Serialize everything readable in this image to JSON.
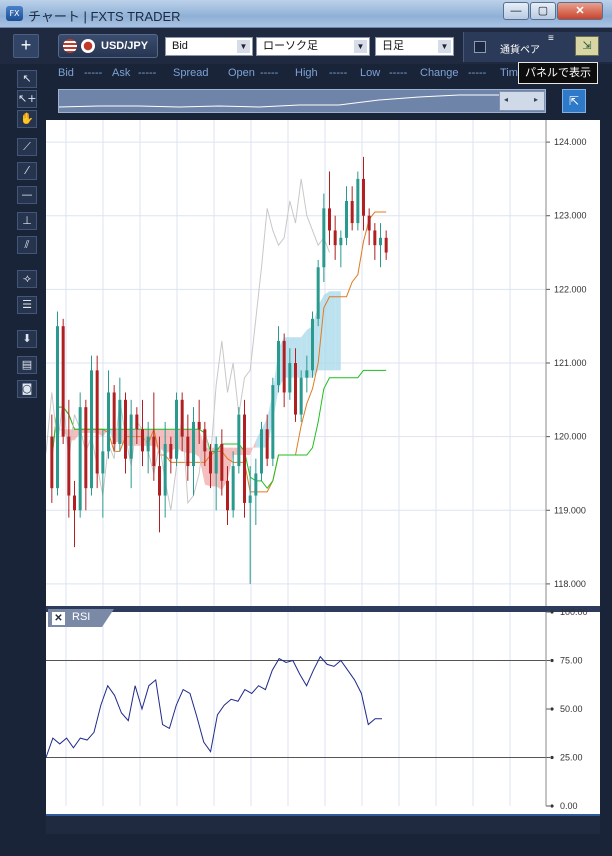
{
  "window": {
    "title": "チャート | FXTS TRADER",
    "icon": "FX",
    "min": "—",
    "max": "▢",
    "close": "✕"
  },
  "toolbar": {
    "add": "+",
    "pair": "USD/JPY",
    "price_type": "Bid",
    "chart_type": "ローソク足",
    "period": "日足",
    "currency_pair_label": "通貨ペア",
    "menu_icon": "≡",
    "restore": "⇲"
  },
  "quote": {
    "bid_label": "Bid",
    "bid": "-----",
    "ask_label": "Ask",
    "ask": "-----",
    "spread_label": "Spread",
    "open_label": "Open",
    "open": "-----",
    "high_label": "High",
    "high": "-----",
    "low_label": "Low",
    "low": "-----",
    "change_label": "Change",
    "change": "-----",
    "time_label": "Tim"
  },
  "tooltip": "パネルで表示",
  "navigator": {
    "left": "◂",
    "right": "▸"
  },
  "tools": [
    "↖",
    "↖+",
    "✋",
    "⟋",
    "⁄",
    "—",
    "⊥",
    "⫽",
    "⟢",
    "☰",
    "⬇",
    "▤",
    "◙"
  ],
  "indicator": {
    "close": "✕",
    "name": "RSI"
  },
  "colors": {
    "bull": "#2a9a8e",
    "bear": "#b02020",
    "kumo_bull": "#a7d8ea",
    "kumo_bear": "#f0a8a8",
    "tenkan": "#e07a20",
    "kijun": "#1fbf1f",
    "chikou": "#c8c8c8",
    "rsi": "#1f2a8a"
  },
  "chart_data": [
    {
      "type": "candlestick",
      "ylim": [
        117.7,
        124.3
      ],
      "yticks": [
        "118.000",
        "119.000",
        "120.000",
        "121.000",
        "122.000",
        "123.000",
        "124.000"
      ],
      "ytick_values": [
        118,
        119,
        120,
        121,
        122,
        123,
        124
      ],
      "candles": [
        [
          120.0,
          120.3,
          119.1,
          119.3
        ],
        [
          119.3,
          121.7,
          119.2,
          121.5
        ],
        [
          121.5,
          121.6,
          119.9,
          120.0
        ],
        [
          120.0,
          120.5,
          118.9,
          119.2
        ],
        [
          119.2,
          119.4,
          118.5,
          119.0
        ],
        [
          119.0,
          120.6,
          118.9,
          120.4
        ],
        [
          120.4,
          120.5,
          119.0,
          119.3
        ],
        [
          119.3,
          121.1,
          119.2,
          120.9
        ],
        [
          120.9,
          121.1,
          119.3,
          119.5
        ],
        [
          119.5,
          120.1,
          118.9,
          119.8
        ],
        [
          119.8,
          120.9,
          119.7,
          120.6
        ],
        [
          120.6,
          120.7,
          119.8,
          119.9
        ],
        [
          119.9,
          120.8,
          119.8,
          120.5
        ],
        [
          120.5,
          120.6,
          119.5,
          119.7
        ],
        [
          119.7,
          120.5,
          119.3,
          120.3
        ],
        [
          120.3,
          120.4,
          119.9,
          120.1
        ],
        [
          120.1,
          120.5,
          119.6,
          119.8
        ],
        [
          119.8,
          120.2,
          119.5,
          120.0
        ],
        [
          120.0,
          120.6,
          119.4,
          119.6
        ],
        [
          119.6,
          120.0,
          118.7,
          119.2
        ],
        [
          119.2,
          120.2,
          118.9,
          119.9
        ],
        [
          119.9,
          120.0,
          119.5,
          119.7
        ],
        [
          119.7,
          120.6,
          119.6,
          120.5
        ],
        [
          120.5,
          120.6,
          119.8,
          120.0
        ],
        [
          120.0,
          120.3,
          119.4,
          119.6
        ],
        [
          119.6,
          120.4,
          119.2,
          120.2
        ],
        [
          120.2,
          120.5,
          119.9,
          120.1
        ],
        [
          120.1,
          120.2,
          119.6,
          119.8
        ],
        [
          119.8,
          119.9,
          119.3,
          119.5
        ],
        [
          119.5,
          120.0,
          119.0,
          119.9
        ],
        [
          119.9,
          120.1,
          119.2,
          119.4
        ],
        [
          119.4,
          119.6,
          118.8,
          119.0
        ],
        [
          119.0,
          119.8,
          118.9,
          119.6
        ],
        [
          119.6,
          120.4,
          119.5,
          120.3
        ],
        [
          120.3,
          120.5,
          118.9,
          119.1
        ],
        [
          119.1,
          119.6,
          118.0,
          119.2
        ],
        [
          119.2,
          119.7,
          118.8,
          119.5
        ],
        [
          119.5,
          120.2,
          119.4,
          120.1
        ],
        [
          120.1,
          120.3,
          119.6,
          119.7
        ],
        [
          119.7,
          120.8,
          119.6,
          120.7
        ],
        [
          120.7,
          121.5,
          120.6,
          121.3
        ],
        [
          121.3,
          121.4,
          120.4,
          120.6
        ],
        [
          120.6,
          121.2,
          120.5,
          121.0
        ],
        [
          121.0,
          121.2,
          120.2,
          120.3
        ],
        [
          120.3,
          120.9,
          120.2,
          120.8
        ],
        [
          120.8,
          121.1,
          120.6,
          120.9
        ],
        [
          120.9,
          121.7,
          120.8,
          121.6
        ],
        [
          121.6,
          122.4,
          121.5,
          122.3
        ],
        [
          122.3,
          123.3,
          122.1,
          123.1
        ],
        [
          123.1,
          123.6,
          122.6,
          122.8
        ],
        [
          122.8,
          123.0,
          122.4,
          122.6
        ],
        [
          122.6,
          122.8,
          122.3,
          122.7
        ],
        [
          122.7,
          123.4,
          122.6,
          123.2
        ],
        [
          123.2,
          123.4,
          122.8,
          122.9
        ],
        [
          122.9,
          123.6,
          122.8,
          123.5
        ],
        [
          123.5,
          123.8,
          122.8,
          123.0
        ],
        [
          123.0,
          123.1,
          122.6,
          122.8
        ],
        [
          122.8,
          122.9,
          122.4,
          122.6
        ],
        [
          122.6,
          122.9,
          122.3,
          122.7
        ],
        [
          122.7,
          122.8,
          122.4,
          122.5
        ]
      ]
    },
    {
      "type": "line",
      "name": "RSI",
      "ylim": [
        0,
        100
      ],
      "yticks": [
        "0.00",
        "25.00",
        "50.00",
        "75.00",
        "100.00"
      ],
      "ytick_values": [
        0,
        25,
        50,
        75,
        100
      ],
      "levels": [
        25,
        75
      ],
      "values": [
        25,
        35,
        32,
        35,
        30,
        35,
        34,
        38,
        52,
        62,
        57,
        48,
        44,
        62,
        50,
        62,
        65,
        42,
        40,
        52,
        60,
        58,
        46,
        33,
        28,
        47,
        52,
        55,
        54,
        60,
        58,
        62,
        60,
        70,
        76,
        74,
        75,
        68,
        62,
        70,
        77,
        73,
        72,
        75,
        70,
        65,
        58,
        42,
        45,
        45
      ]
    }
  ]
}
